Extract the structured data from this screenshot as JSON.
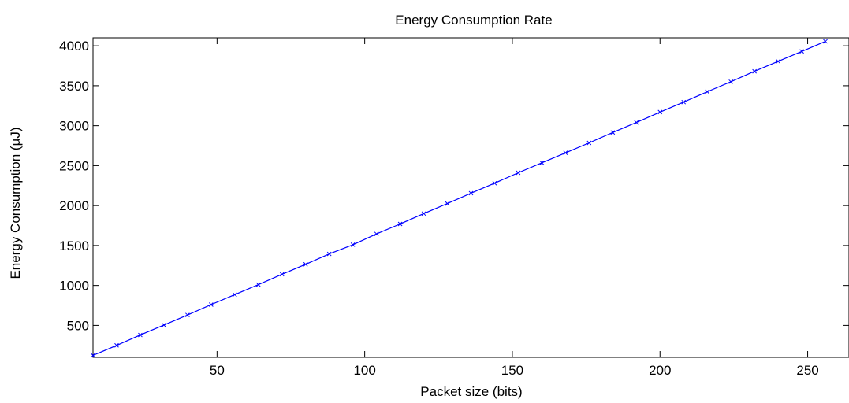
{
  "chart_data": {
    "type": "line",
    "title": "Energy Consumption Rate",
    "xlabel": "Packet size (bits)",
    "ylabel": "Energy Consumption (µJ)",
    "xlim": [
      8,
      264
    ],
    "ylim": [
      100,
      4100
    ],
    "xticks": [
      50,
      100,
      150,
      200,
      250
    ],
    "yticks": [
      500,
      1000,
      1500,
      2000,
      2500,
      3000,
      3500,
      4000
    ],
    "grid": false,
    "line_color": "#0000ff",
    "marker": "x",
    "series": [
      {
        "x": [
          8,
          16,
          24,
          32,
          40,
          48,
          56,
          64,
          72,
          80,
          88,
          96,
          104,
          112,
          120,
          128,
          136,
          144,
          152,
          160,
          168,
          176,
          184,
          192,
          200,
          208,
          216,
          224,
          232,
          240,
          248,
          256
        ],
        "values": [
          125,
          250,
          380,
          505,
          630,
          760,
          885,
          1010,
          1140,
          1265,
          1395,
          1510,
          1645,
          1770,
          1900,
          2025,
          2155,
          2280,
          2410,
          2535,
          2660,
          2785,
          2915,
          3040,
          3170,
          3295,
          3425,
          3550,
          3680,
          3805,
          3930,
          4055
        ]
      }
    ]
  }
}
